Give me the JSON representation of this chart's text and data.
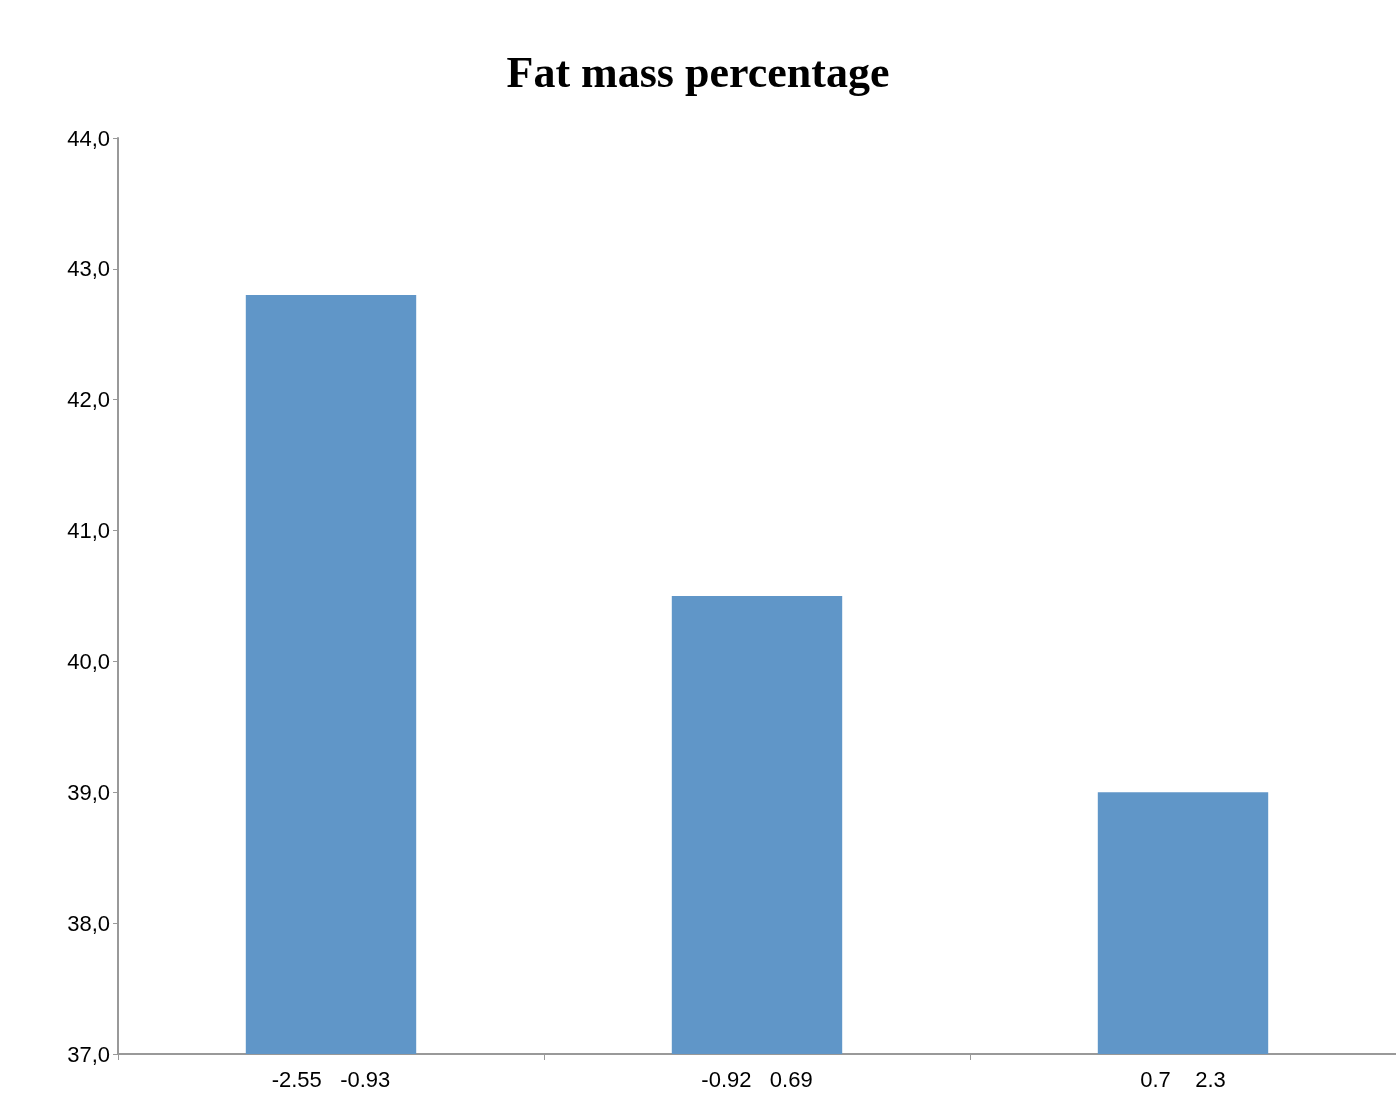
{
  "chart_data": {
    "type": "bar",
    "title": "Fat mass percentage",
    "categories": [
      "-2.55   -0.93",
      "-0.92   0.69",
      "0.7    2.3"
    ],
    "values": [
      42.8,
      40.5,
      39.0
    ],
    "color": "#6096c8",
    "ylim": [
      37,
      44
    ],
    "yticks": [
      {
        "value": 37,
        "label": "37,0"
      },
      {
        "value": 38,
        "label": "38,0"
      },
      {
        "value": 39,
        "label": "39,0"
      },
      {
        "value": 40,
        "label": "40,0"
      },
      {
        "value": 41,
        "label": "41,0"
      },
      {
        "value": 42,
        "label": "42,0"
      },
      {
        "value": 43,
        "label": "43,0"
      },
      {
        "value": 44,
        "label": "44,0"
      }
    ],
    "grid": false
  }
}
